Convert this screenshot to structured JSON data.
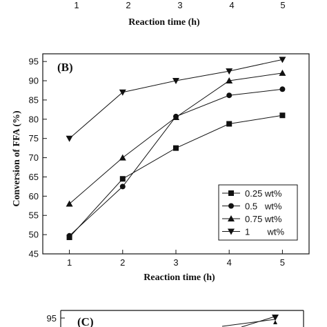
{
  "chart_data": [
    {
      "panel": "top (cropped)",
      "type": "line",
      "x_ticks": [
        "1",
        "2",
        "3",
        "4",
        "5"
      ],
      "xlabel": "Reaction time (h)"
    },
    {
      "panel": "B",
      "type": "line",
      "panel_label": "(B)",
      "xlabel": "Reaction time (h)",
      "ylabel": "Conversion of FFA (%)",
      "xlim": [
        0.5,
        5.5
      ],
      "ylim": [
        45,
        97
      ],
      "x_ticks": [
        1,
        2,
        3,
        4,
        5
      ],
      "y_ticks": [
        45,
        50,
        55,
        60,
        65,
        70,
        75,
        80,
        85,
        90,
        95
      ],
      "grid": false,
      "legend_position": "bottom-right",
      "series": [
        {
          "name": "0.25 wt%",
          "marker": "square",
          "x": [
            1,
            2,
            3,
            4,
            5
          ],
          "values": [
            49.3,
            64.5,
            72.5,
            78.8,
            81.0
          ]
        },
        {
          "name": "0.5   wt%",
          "marker": "circle",
          "x": [
            1,
            2,
            3,
            4,
            5
          ],
          "values": [
            49.7,
            62.5,
            80.7,
            86.2,
            87.8
          ]
        },
        {
          "name": "0.75 wt%",
          "marker": "triangle-up",
          "x": [
            1,
            2,
            3,
            4,
            5
          ],
          "values": [
            58.0,
            70.0,
            80.5,
            90.0,
            92.0
          ]
        },
        {
          "name": "1       wt%",
          "marker": "triangle-down",
          "x": [
            1,
            2,
            3,
            4,
            5
          ],
          "values": [
            75.0,
            87.0,
            90.0,
            92.5,
            95.5
          ]
        }
      ]
    },
    {
      "panel": "C (cropped)",
      "type": "line",
      "panel_label": "(C)",
      "y_ticks": [
        95
      ]
    }
  ]
}
